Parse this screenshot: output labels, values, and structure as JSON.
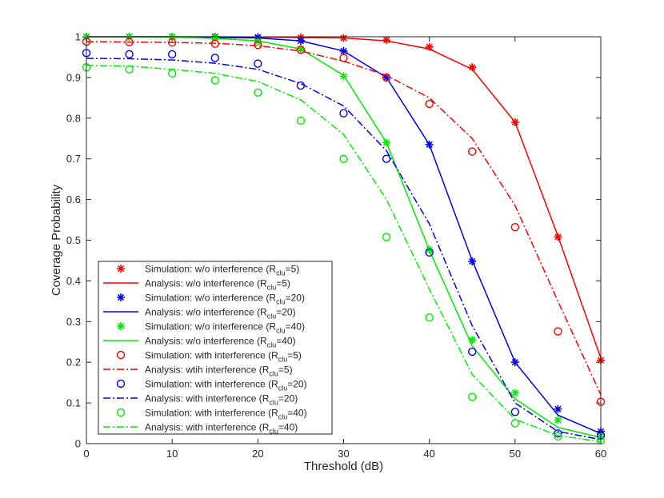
{
  "chart_data": {
    "type": "line",
    "title": "",
    "xlabel": "Threshold (dB)",
    "ylabel": "Coverage Probability",
    "xlim": [
      0,
      60
    ],
    "ylim": [
      0,
      1
    ],
    "xticks": [
      "0",
      "10",
      "20",
      "30",
      "40",
      "50",
      "60"
    ],
    "yticks": [
      "0",
      "0.1",
      "0.2",
      "0.3",
      "0.4",
      "0.5",
      "0.6",
      "0.7",
      "0.8",
      "0.9",
      "1"
    ],
    "legend_position": "bottom-left",
    "x": [
      0,
      5,
      10,
      15,
      20,
      25,
      30,
      35,
      40,
      45,
      50,
      55,
      60
    ],
    "series": [
      {
        "name": "Simulation: w/o interference",
        "rclu": "5",
        "kind": "simulation",
        "marker": "star",
        "color": "#ff0000",
        "values": [
          1.0,
          1.0,
          1.0,
          1.0,
          0.999,
          0.998,
          0.997,
          0.992,
          0.975,
          0.925,
          0.79,
          0.508,
          0.205
        ]
      },
      {
        "name": "Analysis:   w/o interference",
        "rclu": "5",
        "kind": "analysis",
        "dash": "solid",
        "color": "#ff0000",
        "values": [
          1.0,
          1.0,
          1.0,
          1.0,
          0.999,
          0.998,
          0.997,
          0.99,
          0.97,
          0.92,
          0.79,
          0.51,
          0.21
        ]
      },
      {
        "name": "Simulation: w/o interference",
        "rclu": "20",
        "kind": "simulation",
        "marker": "star",
        "color": "#0000ff",
        "values": [
          1.0,
          1.0,
          1.0,
          1.0,
          0.998,
          0.99,
          0.965,
          0.9,
          0.735,
          0.448,
          0.2,
          0.085,
          0.03
        ]
      },
      {
        "name": "Analysis:   w/o interference",
        "rclu": "20",
        "kind": "analysis",
        "dash": "solid",
        "color": "#0000ff",
        "values": [
          1.0,
          1.0,
          1.0,
          0.998,
          0.997,
          0.99,
          0.965,
          0.9,
          0.735,
          0.45,
          0.2,
          0.07,
          0.025
        ]
      },
      {
        "name": "Simulation: w/o interference",
        "rclu": "40",
        "kind": "simulation",
        "marker": "star",
        "color": "#00ee00",
        "values": [
          1.0,
          1.0,
          1.0,
          0.998,
          0.988,
          0.97,
          0.903,
          0.74,
          0.477,
          0.255,
          0.125,
          0.058,
          0.018
        ]
      },
      {
        "name": "Analysis:   w/o interference",
        "rclu": "40",
        "kind": "analysis",
        "dash": "solid",
        "color": "#00ee00",
        "values": [
          1.0,
          1.0,
          0.999,
          0.996,
          0.99,
          0.97,
          0.905,
          0.74,
          0.475,
          0.24,
          0.11,
          0.04,
          0.015
        ]
      },
      {
        "name": "Simulation: with interference",
        "rclu": "5",
        "kind": "simulation",
        "marker": "circle",
        "color": "#ff0000",
        "values": [
          0.988,
          0.987,
          0.986,
          0.983,
          0.98,
          0.968,
          0.948,
          0.9,
          0.835,
          0.718,
          0.532,
          0.276,
          0.103
        ]
      },
      {
        "name": "Analysis:   wtih interference",
        "rclu": "5",
        "kind": "analysis",
        "dash": "dashdot",
        "color": "#ff0000",
        "values": [
          0.988,
          0.987,
          0.986,
          0.984,
          0.978,
          0.965,
          0.94,
          0.905,
          0.85,
          0.75,
          0.585,
          0.35,
          0.12
        ]
      },
      {
        "name": "Simulation: with interference",
        "rclu": "20",
        "kind": "simulation",
        "marker": "circle",
        "color": "#0000ff",
        "values": [
          0.96,
          0.957,
          0.957,
          0.948,
          0.934,
          0.88,
          0.812,
          0.7,
          0.47,
          0.226,
          0.078,
          0.025,
          0.02
        ]
      },
      {
        "name": "Analysis:   with interference",
        "rclu": "20",
        "kind": "analysis",
        "dash": "dashdot",
        "color": "#0000ff",
        "values": [
          0.947,
          0.946,
          0.943,
          0.935,
          0.92,
          0.885,
          0.83,
          0.72,
          0.54,
          0.29,
          0.1,
          0.03,
          0.01
        ]
      },
      {
        "name": "Simulation: with interference",
        "rclu": "40",
        "kind": "simulation",
        "marker": "circle",
        "color": "#00ee00",
        "values": [
          0.925,
          0.92,
          0.91,
          0.893,
          0.863,
          0.794,
          0.7,
          0.508,
          0.31,
          0.115,
          0.05,
          0.018,
          0.008
        ]
      },
      {
        "name": "Analysis:   with interference",
        "rclu": "40",
        "kind": "analysis",
        "dash": "dashdot",
        "color": "#00ee00",
        "values": [
          0.93,
          0.928,
          0.92,
          0.91,
          0.89,
          0.845,
          0.76,
          0.6,
          0.38,
          0.17,
          0.06,
          0.02,
          0.005
        ]
      }
    ]
  }
}
